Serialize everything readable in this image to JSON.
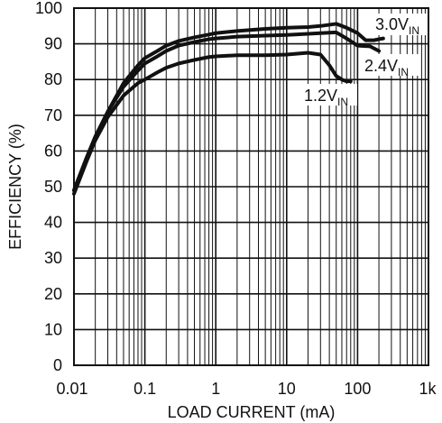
{
  "chart_data": {
    "type": "line",
    "title": "",
    "xlabel": "LOAD CURRENT (mA)",
    "ylabel": "EFFICIENCY (%)",
    "x_scale": "log",
    "xlim": [
      0.01,
      1000
    ],
    "ylim": [
      0,
      100
    ],
    "grid": true,
    "legend": "none",
    "x_ticks": [
      {
        "value": 0.01,
        "label": "0.01"
      },
      {
        "value": 0.1,
        "label": "0.1"
      },
      {
        "value": 1,
        "label": "1"
      },
      {
        "value": 10,
        "label": "10"
      },
      {
        "value": 100,
        "label": "100"
      },
      {
        "value": 1000,
        "label": "1k"
      }
    ],
    "y_ticks": [
      {
        "value": 0,
        "label": "0"
      },
      {
        "value": 10,
        "label": "10"
      },
      {
        "value": 20,
        "label": "20"
      },
      {
        "value": 30,
        "label": "30"
      },
      {
        "value": 40,
        "label": "40"
      },
      {
        "value": 50,
        "label": "50"
      },
      {
        "value": 60,
        "label": "60"
      },
      {
        "value": 70,
        "label": "70"
      },
      {
        "value": 80,
        "label": "80"
      },
      {
        "value": 90,
        "label": "90"
      },
      {
        "value": 100,
        "label": "100"
      }
    ],
    "series": [
      {
        "name": "3.0VIN",
        "label_main": "3.0V",
        "label_sub": "IN",
        "points": [
          [
            0.01,
            49
          ],
          [
            0.015,
            58
          ],
          [
            0.02,
            64
          ],
          [
            0.03,
            71
          ],
          [
            0.05,
            79
          ],
          [
            0.08,
            84
          ],
          [
            0.1,
            86
          ],
          [
            0.15,
            88
          ],
          [
            0.2,
            89.5
          ],
          [
            0.3,
            90.8
          ],
          [
            0.5,
            91.8
          ],
          [
            0.8,
            92.6
          ],
          [
            1,
            93
          ],
          [
            2,
            93.6
          ],
          [
            5,
            94.2
          ],
          [
            10,
            94.5
          ],
          [
            20,
            94.7
          ],
          [
            30,
            95
          ],
          [
            50,
            95.6
          ],
          [
            70,
            94.5
          ],
          [
            100,
            93
          ],
          [
            130,
            91
          ],
          [
            170,
            91
          ],
          [
            200,
            91.3
          ],
          [
            230,
            91.5
          ]
        ]
      },
      {
        "name": "2.4VIN",
        "label_main": "2.4V",
        "label_sub": "IN",
        "points": [
          [
            0.01,
            49
          ],
          [
            0.015,
            58
          ],
          [
            0.02,
            64
          ],
          [
            0.03,
            71
          ],
          [
            0.05,
            78
          ],
          [
            0.08,
            82.5
          ],
          [
            0.1,
            84.5
          ],
          [
            0.15,
            86.5
          ],
          [
            0.2,
            88
          ],
          [
            0.3,
            89.5
          ],
          [
            0.5,
            90.5
          ],
          [
            0.8,
            91.3
          ],
          [
            1,
            91.5
          ],
          [
            2,
            92
          ],
          [
            5,
            92.3
          ],
          [
            10,
            92.5
          ],
          [
            20,
            92.8
          ],
          [
            30,
            93
          ],
          [
            50,
            93.2
          ],
          [
            70,
            91.5
          ],
          [
            100,
            89.5
          ],
          [
            150,
            89.3
          ],
          [
            200,
            88
          ]
        ]
      },
      {
        "name": "1.2VIN",
        "label_main": "1.2V",
        "label_sub": "IN",
        "points": [
          [
            0.01,
            48
          ],
          [
            0.015,
            57
          ],
          [
            0.02,
            63
          ],
          [
            0.03,
            69.5
          ],
          [
            0.05,
            75.5
          ],
          [
            0.08,
            79
          ],
          [
            0.1,
            80
          ],
          [
            0.15,
            82
          ],
          [
            0.2,
            83.3
          ],
          [
            0.3,
            84.5
          ],
          [
            0.5,
            85.5
          ],
          [
            0.8,
            86.3
          ],
          [
            1,
            86.5
          ],
          [
            2,
            86.8
          ],
          [
            5,
            86.8
          ],
          [
            10,
            87
          ],
          [
            20,
            87.5
          ],
          [
            30,
            87
          ],
          [
            40,
            84
          ],
          [
            50,
            81
          ],
          [
            60,
            80
          ],
          [
            70,
            79.5
          ],
          [
            80,
            79.5
          ]
        ]
      }
    ]
  }
}
